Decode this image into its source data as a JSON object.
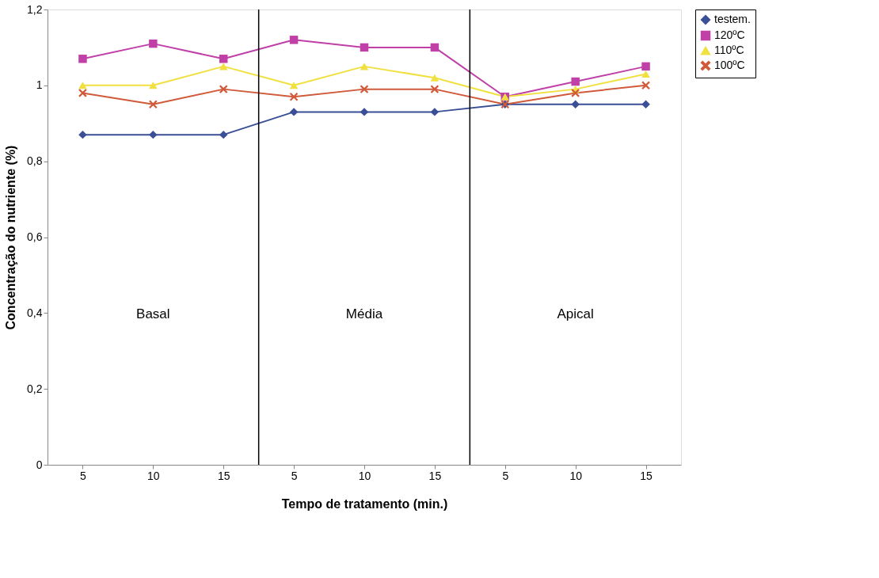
{
  "chart_data": {
    "type": "line",
    "xlabel": "Tempo de tratamento (min.)",
    "ylabel": "Concentração do nutriente (%)",
    "categories": [
      "5",
      "10",
      "15",
      "5",
      "10",
      "15",
      "5",
      "10",
      "15"
    ],
    "ylim": [
      0,
      1.2
    ],
    "yticks": [
      0,
      {
        "value": 0.2,
        "label": "0,2"
      },
      {
        "value": 0.4,
        "label": "0,4"
      },
      {
        "value": 0.6,
        "label": "0,6"
      },
      {
        "value": 0.8,
        "label": "0,8"
      },
      1,
      {
        "value": 1.2,
        "label": "1,2"
      }
    ],
    "series": [
      {
        "name": "testem.",
        "color": "#3a4f96",
        "marker": "diamond",
        "values": [
          0.87,
          0.87,
          0.87,
          0.93,
          0.93,
          0.93,
          0.95,
          0.95,
          0.95
        ]
      },
      {
        "name": "120ºC",
        "color": "#c040a8",
        "marker": "square",
        "values": [
          1.07,
          1.11,
          1.07,
          1.12,
          1.1,
          1.1,
          0.97,
          1.01,
          1.05
        ]
      },
      {
        "name": "110ºC",
        "color": "#f0e040",
        "marker": "triangle",
        "values": [
          1.0,
          1.0,
          1.05,
          1.0,
          1.05,
          1.02,
          0.97,
          0.99,
          1.03
        ]
      },
      {
        "name": "100ºC",
        "color": "#d05a3a",
        "marker": "cross",
        "values": [
          0.98,
          0.95,
          0.99,
          0.97,
          0.99,
          0.99,
          0.95,
          0.98,
          1.0
        ]
      }
    ],
    "annotations": [
      "Basal",
      "Média",
      "Apical"
    ],
    "grid": false,
    "legend": "right",
    "line_style": "solid"
  }
}
